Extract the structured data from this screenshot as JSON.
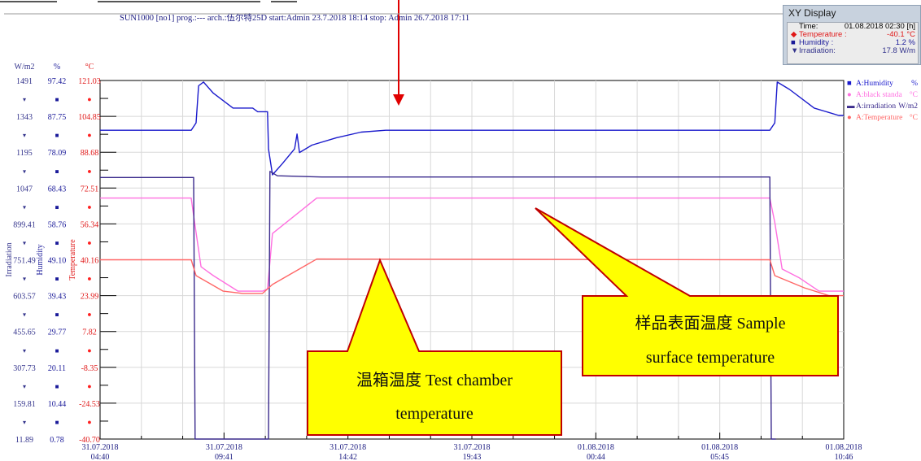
{
  "chart_data": {
    "type": "line",
    "title": "SUN1000 [no1] prog.:--- arch.:伍尔特25D start:Admin 23.7.2018  18:14 stop: Admin 26.7.2018  17:11",
    "x_ticks": [
      {
        "date": "31.07.2018",
        "time": "04:40"
      },
      {
        "date": "31.07.2018",
        "time": "09:41"
      },
      {
        "date": "31.07.2018",
        "time": "14:42"
      },
      {
        "date": "31.07.2018",
        "time": "19:43"
      },
      {
        "date": "01.08.2018",
        "time": "00:44"
      },
      {
        "date": "01.08.2018",
        "time": "05:45"
      },
      {
        "date": "01.08.2018",
        "time": "10:46"
      }
    ],
    "axes": [
      {
        "unit": "W/m2",
        "label": "Irradiation",
        "color": "#33338c",
        "ticks": [
          "1491",
          "1343",
          "1195",
          "1047",
          "899.41",
          "751.49",
          "603.57",
          "455.65",
          "307.73",
          "159.81",
          "11.89"
        ]
      },
      {
        "unit": "%",
        "label": "Humidity",
        "color": "#1a1a99",
        "ticks": [
          "97.42",
          "87.75",
          "78.09",
          "68.43",
          "58.76",
          "49.10",
          "39.43",
          "29.77",
          "20.11",
          "10.44",
          "0.78"
        ]
      },
      {
        "unit": "°C",
        "label": "Temperature",
        "color": "#e01818",
        "ticks": [
          "121.03",
          "104.85",
          "88.68",
          "72.51",
          "56.34",
          "40.16",
          "23.99",
          "7.82",
          "-8.35",
          "-24.53",
          "-40.70"
        ]
      }
    ],
    "ylim_temperature": [
      -40.7,
      121.03
    ],
    "grid": true,
    "legend_position": "right",
    "legend": [
      {
        "name": "A:Humidity",
        "unit": "%",
        "color": "#1a1acc"
      },
      {
        "name": "A:black standa",
        "unit": "°C",
        "color": "#ff6fe0"
      },
      {
        "name": "A:irradiation",
        "unit": "W/m2",
        "color": "#3a2a8c"
      },
      {
        "name": "A:Temperature",
        "unit": "°C",
        "color": "#ff6666"
      }
    ],
    "series": [
      {
        "name": "A:Humidity",
        "unit": "%",
        "color": "#1a1acc",
        "points": [
          [
            0,
            84
          ],
          [
            1.85,
            84
          ],
          [
            1.95,
            86
          ],
          [
            2.0,
            96
          ],
          [
            2.1,
            97
          ],
          [
            2.3,
            94
          ],
          [
            2.7,
            90
          ],
          [
            3.1,
            90
          ],
          [
            3.2,
            89
          ],
          [
            3.4,
            89
          ],
          [
            3.42,
            79
          ],
          [
            3.5,
            72
          ],
          [
            3.7,
            75
          ],
          [
            3.95,
            79
          ],
          [
            4.0,
            83
          ],
          [
            4.05,
            78
          ],
          [
            4.3,
            80
          ],
          [
            4.8,
            82
          ],
          [
            5.3,
            83.5
          ],
          [
            5.8,
            84
          ],
          [
            12.0,
            84
          ],
          [
            13.6,
            84
          ],
          [
            13.7,
            86
          ],
          [
            13.75,
            97
          ],
          [
            14.0,
            95
          ],
          [
            14.5,
            90
          ],
          [
            15.0,
            88
          ],
          [
            15.1,
            88
          ]
        ]
      },
      {
        "name": "A:black standa",
        "unit": "°C",
        "color": "#ff6fe0",
        "points": [
          [
            0,
            68
          ],
          [
            1.85,
            68
          ],
          [
            1.92,
            57
          ],
          [
            2.05,
            37
          ],
          [
            2.3,
            33
          ],
          [
            2.8,
            26
          ],
          [
            3.3,
            26
          ],
          [
            3.4,
            27
          ],
          [
            3.5,
            52
          ],
          [
            4.4,
            68
          ],
          [
            13.6,
            68
          ],
          [
            13.7,
            57
          ],
          [
            13.85,
            36
          ],
          [
            14.2,
            32
          ],
          [
            14.6,
            26
          ],
          [
            15.1,
            26
          ]
        ]
      },
      {
        "name": "A:irradiation",
        "unit": "W/m2",
        "color": "#3a2a8c",
        "points": [
          [
            0,
            1091
          ],
          [
            1.9,
            1091
          ],
          [
            1.93,
            11.89
          ],
          [
            3.42,
            11.89
          ],
          [
            3.45,
            1116
          ],
          [
            3.6,
            1098
          ],
          [
            4.5,
            1093
          ],
          [
            13.6,
            1093
          ],
          [
            13.63,
            11.89
          ],
          [
            13.68,
            11.89
          ],
          [
            13.72,
            0
          ]
        ]
      },
      {
        "name": "A:Temperature",
        "unit": "°C",
        "color": "#ff6666",
        "points": [
          [
            0,
            40.16
          ],
          [
            1.85,
            40.16
          ],
          [
            1.95,
            33
          ],
          [
            2.5,
            26
          ],
          [
            2.9,
            25
          ],
          [
            3.3,
            25
          ],
          [
            3.4,
            27
          ],
          [
            3.5,
            29
          ],
          [
            4.4,
            40.5
          ],
          [
            13.6,
            40.16
          ],
          [
            13.7,
            33
          ],
          [
            14.3,
            27.5
          ],
          [
            14.8,
            24
          ],
          [
            15.1,
            24
          ]
        ]
      }
    ],
    "cursor_time": "01.08.2018 02:30 [h]"
  },
  "xy_display": {
    "title": "XY Display",
    "time_label": "Time:",
    "time_value": "01.08.2018 02:30 [h]",
    "rows": [
      {
        "label": "Temperature   :",
        "value": "-40.1 °C",
        "color": "#e01818"
      },
      {
        "label": "Humidity     :",
        "value": "1.2 %",
        "color": "#1a1a99"
      },
      {
        "label": "Irradiation:",
        "value": "17.8 W/m",
        "color": "#33338c"
      }
    ]
  },
  "annotations": {
    "sample": {
      "line1": "样品表面温度 Sample",
      "line2": "surface temperature"
    },
    "chamber": {
      "line1": "温箱温度 Test chamber",
      "line2": "temperature"
    }
  },
  "colors": {
    "arrow": "#ff0000",
    "callout_fill": "#ffff00",
    "callout_border": "#cc0000"
  }
}
